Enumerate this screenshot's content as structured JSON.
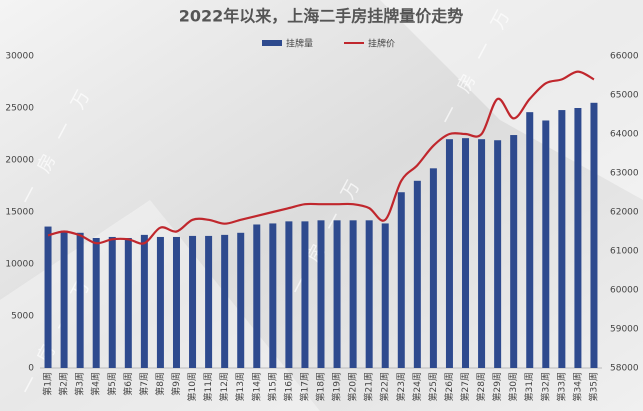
{
  "chart_data": {
    "type": "bar",
    "title": "2022年以来，上海二手房挂牌量价走势",
    "watermark": "一房一万",
    "categories": [
      "第1周",
      "第2周",
      "第3周",
      "第4周",
      "第5周",
      "第6周",
      "第7周",
      "第8周",
      "第9周",
      "第10周",
      "第11周",
      "第12周",
      "第13周",
      "第14周",
      "第15周",
      "第16周",
      "第17周",
      "第18周",
      "第19周",
      "第20周",
      "第21周",
      "第22周",
      "第23周",
      "第24周",
      "第25周",
      "第26周",
      "第27周",
      "第28周",
      "第29周",
      "第30周",
      "第31周",
      "第32周",
      "第33周",
      "第34周",
      "第35周"
    ],
    "series": [
      {
        "name": "挂牌量",
        "type": "bar",
        "color": "#2e4a8e",
        "values": [
          13600,
          13200,
          13000,
          12500,
          12600,
          12500,
          12800,
          12600,
          12600,
          12700,
          12700,
          12800,
          13000,
          13800,
          13900,
          14100,
          14100,
          14200,
          14200,
          14200,
          14200,
          13900,
          16900,
          18000,
          19200,
          22000,
          22100,
          22000,
          21900,
          22400,
          24600,
          23800,
          24800,
          25000,
          25500
        ]
      },
      {
        "name": "挂牌价",
        "type": "line",
        "axis": "y2",
        "color": "#c0272d",
        "values": [
          61400,
          61500,
          61400,
          61200,
          61300,
          61300,
          61200,
          61600,
          61500,
          61800,
          61800,
          61700,
          61800,
          61900,
          62000,
          62100,
          62200,
          62200,
          62200,
          62200,
          62100,
          61800,
          62800,
          63200,
          63700,
          64000,
          64000,
          64000,
          64900,
          64400,
          64900,
          65300,
          65400,
          65600,
          65400
        ]
      }
    ],
    "ylim": [
      0,
      30000
    ],
    "yticks": [
      0,
      5000,
      10000,
      15000,
      20000,
      25000,
      30000
    ],
    "y2lim": [
      58000,
      66000
    ],
    "y2ticks": [
      58000,
      59000,
      60000,
      61000,
      62000,
      63000,
      64000,
      65000,
      66000
    ],
    "grid": false,
    "legend": "top"
  }
}
